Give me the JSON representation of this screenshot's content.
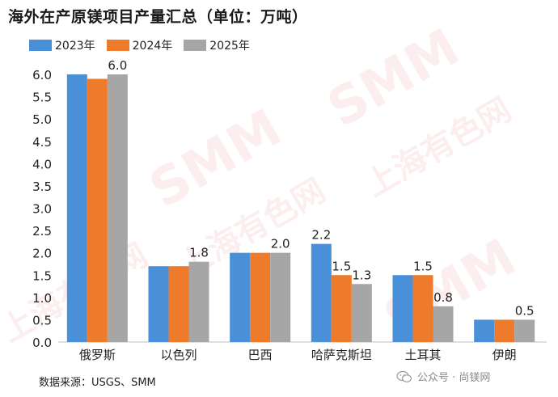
{
  "title": "海外在产原镁项目产量汇总（单位：万吨）",
  "source": "数据来源：USGS、SMM",
  "watermark": {
    "brand": "SMM",
    "cn": "上海有色网",
    "footer": "公众号 · 尚镁网"
  },
  "colors": {
    "2023年": "#4a90d9",
    "2024年": "#ee7a2b",
    "2025年": "#a6a6a6"
  },
  "chart_data": {
    "type": "bar",
    "categories": [
      "俄罗斯",
      "以色列",
      "巴西",
      "哈萨克斯坦",
      "土耳其",
      "伊朗"
    ],
    "series": [
      {
        "name": "2023年",
        "values": [
          6.0,
          1.7,
          2.0,
          2.2,
          1.5,
          0.5
        ]
      },
      {
        "name": "2024年",
        "values": [
          5.9,
          1.7,
          2.0,
          1.5,
          1.5,
          0.5
        ]
      },
      {
        "name": "2025年",
        "values": [
          6.0,
          1.8,
          2.0,
          1.3,
          0.8,
          0.5
        ]
      }
    ],
    "data_labels": [
      {
        "category": "俄罗斯",
        "series": "2025年",
        "text": "6.0"
      },
      {
        "category": "以色列",
        "series": "2025年",
        "text": "1.8"
      },
      {
        "category": "巴西",
        "series": "2025年",
        "text": "2.0"
      },
      {
        "category": "哈萨克斯坦",
        "series": "2023年",
        "text": "2.2"
      },
      {
        "category": "哈萨克斯坦",
        "series": "2024年",
        "text": "1.5"
      },
      {
        "category": "哈萨克斯坦",
        "series": "2025年",
        "text": "1.3"
      },
      {
        "category": "土耳其",
        "series": "2024年",
        "text": "1.5"
      },
      {
        "category": "土耳其",
        "series": "2025年",
        "text": "0.8"
      },
      {
        "category": "伊朗",
        "series": "2025年",
        "text": "0.5"
      }
    ],
    "yticks": [
      "0.0",
      "0.5",
      "1.0",
      "1.5",
      "2.0",
      "2.5",
      "3.0",
      "3.5",
      "4.0",
      "4.5",
      "5.0",
      "5.5",
      "6.0"
    ],
    "ylim": [
      0,
      6.0
    ],
    "grid": false,
    "legend_position": "top-left"
  }
}
